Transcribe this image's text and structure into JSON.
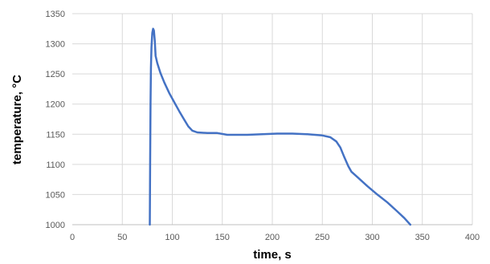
{
  "chart_data": {
    "type": "line",
    "xlabel": "time, s",
    "ylabel": "temperature, °C",
    "xlim": [
      0,
      400
    ],
    "ylim": [
      1000,
      1350
    ],
    "x_ticks": [
      0,
      50,
      100,
      150,
      200,
      250,
      300,
      350,
      400
    ],
    "y_ticks": [
      1000,
      1050,
      1100,
      1150,
      1200,
      1250,
      1300,
      1350
    ],
    "grid": true,
    "legend": "none",
    "series": [
      {
        "color": "#4472c4",
        "points": [
          [
            77.5,
            1000
          ],
          [
            77.8,
            1100
          ],
          [
            78.2,
            1200
          ],
          [
            78.6,
            1260
          ],
          [
            79.2,
            1295
          ],
          [
            80.0,
            1318
          ],
          [
            80.8,
            1325
          ],
          [
            81.6,
            1322
          ],
          [
            82.5,
            1305
          ],
          [
            83.3,
            1280
          ],
          [
            85,
            1268
          ],
          [
            88,
            1252
          ],
          [
            92,
            1236
          ],
          [
            97,
            1218
          ],
          [
            102,
            1203
          ],
          [
            107,
            1188
          ],
          [
            112,
            1174
          ],
          [
            116,
            1163
          ],
          [
            120,
            1156
          ],
          [
            125,
            1153
          ],
          [
            135,
            1152
          ],
          [
            145,
            1152
          ],
          [
            155,
            1149
          ],
          [
            165,
            1149
          ],
          [
            175,
            1149
          ],
          [
            190,
            1150
          ],
          [
            205,
            1151
          ],
          [
            220,
            1151
          ],
          [
            235,
            1150
          ],
          [
            250,
            1148
          ],
          [
            258,
            1145
          ],
          [
            264,
            1138
          ],
          [
            268,
            1128
          ],
          [
            272,
            1112
          ],
          [
            276,
            1097
          ],
          [
            279,
            1088
          ],
          [
            285,
            1079
          ],
          [
            295,
            1064
          ],
          [
            305,
            1050
          ],
          [
            315,
            1037
          ],
          [
            325,
            1022
          ],
          [
            332,
            1011
          ],
          [
            338,
            1000
          ]
        ]
      }
    ]
  }
}
